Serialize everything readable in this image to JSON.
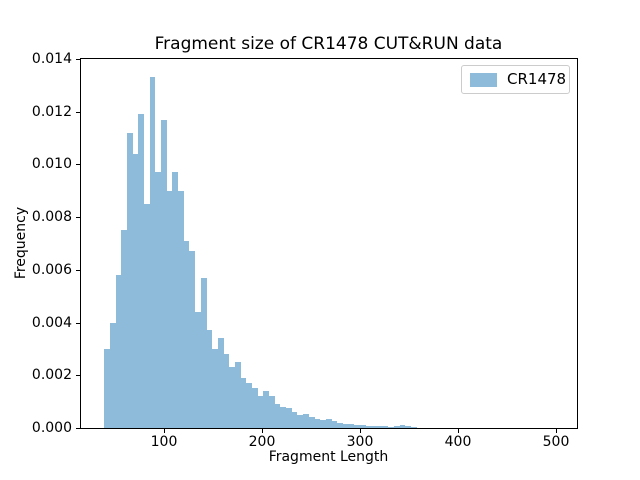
{
  "chart_data": {
    "type": "bar",
    "subtype": "histogram",
    "title": "Fragment size of CR1478 CUT&RUN data",
    "xlabel": "Fragment Length",
    "ylabel": "Frequency",
    "grid": false,
    "legend": {
      "position": "upper right",
      "entries": [
        {
          "label": "CR1478",
          "color": "#8FBBDA"
        }
      ]
    },
    "xlim": [
      15.3,
      521.4
    ],
    "ylim": [
      0,
      0.014
    ],
    "x_tick_values": [
      100,
      200,
      300,
      400,
      500
    ],
    "x_tick_labels": [
      "100",
      "200",
      "300",
      "400",
      "500"
    ],
    "y_tick_values": [
      0.0,
      0.002,
      0.004,
      0.006,
      0.008,
      0.01,
      0.012,
      0.014
    ],
    "y_tick_labels": [
      "0.000",
      "0.002",
      "0.004",
      "0.006",
      "0.008",
      "0.010",
      "0.012",
      "0.014"
    ],
    "bins": {
      "start": 39,
      "width": 5.8,
      "count": 55
    },
    "values": [
      0.003,
      0.004,
      0.0058,
      0.0075,
      0.0112,
      0.0104,
      0.0119,
      0.0085,
      0.0133,
      0.0097,
      0.0117,
      0.009,
      0.0097,
      0.009,
      0.0071,
      0.0067,
      0.0044,
      0.0057,
      0.0037,
      0.003,
      0.0034,
      0.0028,
      0.0023,
      0.0025,
      0.0019,
      0.0017,
      0.0015,
      0.0012,
      0.0014,
      0.0012,
      0.0009,
      0.0008,
      0.00075,
      0.0006,
      0.0005,
      0.00055,
      0.0004,
      0.00036,
      0.0003,
      0.00033,
      0.00025,
      0.0002,
      0.00017,
      0.00015,
      0.00013,
      0.0001,
      9e-05,
      8e-05,
      7e-05,
      6e-05,
      5e-05,
      6e-05,
      0.00012,
      8e-05,
      4e-05
    ]
  },
  "colors": {
    "bar_fill": "#8FBBDA",
    "axis": "#000000",
    "text": "#000000",
    "legend_border": "#CCCCCC",
    "background": "#FFFFFF"
  }
}
